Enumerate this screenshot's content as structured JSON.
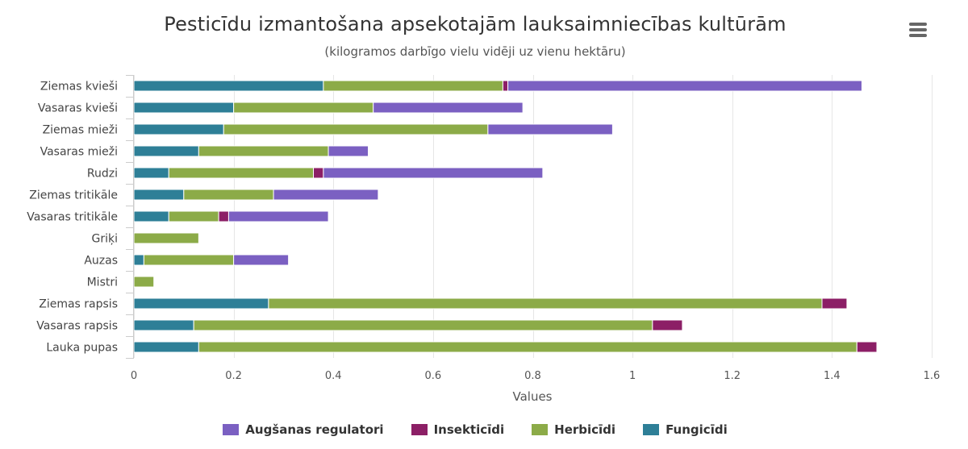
{
  "chart_data": {
    "type": "bar",
    "orientation": "horizontal",
    "stacked": true,
    "title": "Pesticīdu izmantošana apsekotajām lauksaimniecības kultūrām",
    "subtitle": "(kilogramos darbīgo vielu vidēji uz vienu hektāru)",
    "xlabel": "Values",
    "xlim": [
      0,
      1.6
    ],
    "xticks": [
      "0",
      "0.2",
      "0.4",
      "0.6",
      "0.8",
      "1",
      "1.2",
      "1.4",
      "1.6"
    ],
    "grid": true,
    "legend_position": "bottom",
    "categories": [
      "Ziemas kvieši",
      "Vasaras kvieši",
      "Ziemas mieži",
      "Vasaras mieži",
      "Rudzi",
      "Ziemas tritikāle",
      "Vasaras tritikāle",
      "Griķi",
      "Auzas",
      "Mistri",
      "Ziemas rapsis",
      "Vasaras rapsis",
      "Lauka pupas"
    ],
    "series": [
      {
        "name": "Fungicīdi",
        "color": "#2e7f97",
        "values": [
          0.38,
          0.2,
          0.18,
          0.13,
          0.07,
          0.1,
          0.07,
          0,
          0.02,
          0,
          0.27,
          0.12,
          0.13
        ]
      },
      {
        "name": "Herbicīdi",
        "color": "#8cab48",
        "values": [
          0.36,
          0.28,
          0.53,
          0.26,
          0.29,
          0.18,
          0.1,
          0.13,
          0.18,
          0.04,
          1.11,
          0.92,
          1.32
        ]
      },
      {
        "name": "Insekticīdi",
        "color": "#8c1f66",
        "values": [
          0.01,
          0,
          0,
          0,
          0.02,
          0,
          0.02,
          0,
          0,
          0,
          0.05,
          0.06,
          0.04
        ]
      },
      {
        "name": "Augšanas regulatori",
        "color": "#7b60c2",
        "values": [
          0.71,
          0.3,
          0.25,
          0.08,
          0.44,
          0.21,
          0.2,
          0,
          0.11,
          0,
          0,
          0,
          0
        ]
      }
    ],
    "legend_order": [
      "Augšanas regulatori",
      "Insekticīdi",
      "Herbicīdi",
      "Fungicīdi"
    ]
  },
  "menu": {
    "icon": "hamburger-menu-icon"
  }
}
